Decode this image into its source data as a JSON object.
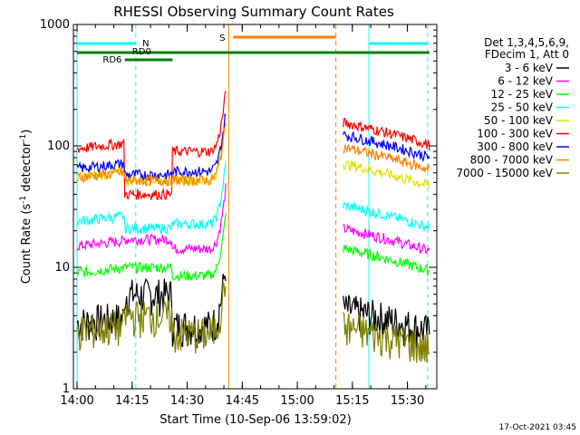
{
  "chart_data": {
    "type": "line",
    "title": "RHESSI Observing Summary Count Rates",
    "xlabel": "Start Time (10-Sep-06 13:59:02)",
    "ylabel_main": "Count Rate (s",
    "ylabel_sup1": "-1",
    "ylabel_mid": " detector",
    "ylabel_sup2": "-1",
    "ylabel_end": ")",
    "ylog": true,
    "ylim": [
      1,
      1000
    ],
    "xlim_min": [
      0,
      99
    ],
    "x_ticks": [
      {
        "t": 1,
        "label": "14:00"
      },
      {
        "t": 16,
        "label": "14:15"
      },
      {
        "t": 31,
        "label": "14:30"
      },
      {
        "t": 46,
        "label": "14:45"
      },
      {
        "t": 61,
        "label": "15:00"
      },
      {
        "t": 76,
        "label": "15:15"
      },
      {
        "t": 91,
        "label": "15:30"
      }
    ],
    "y_ticks": [
      {
        "v": 1,
        "label": "1"
      },
      {
        "v": 10,
        "label": "10"
      },
      {
        "v": 100,
        "label": "100"
      },
      {
        "v": 1000,
        "label": "1000"
      }
    ],
    "legend_header": [
      "Det 1,3,4,5,6,9,",
      "FDecim 1, Att 0"
    ],
    "series": [
      {
        "name": "3 - 6 keV",
        "color": "#000000",
        "pre": 3.5,
        "bump": 6.0,
        "post": 3.5
      },
      {
        "name": "6 - 12 keV",
        "color": "#ff00ff",
        "pre": 15,
        "bump": 17,
        "post": 16
      },
      {
        "name": "12 - 25 keV",
        "color": "#00ff00",
        "pre": 9,
        "bump": 10,
        "post": 11
      },
      {
        "name": "25 - 50 keV",
        "color": "#00ffff",
        "pre": 24,
        "bump": 21,
        "post": 25
      },
      {
        "name": "50 - 100 keV",
        "color": "#e0e000",
        "pre": 55,
        "bump": 52,
        "post": 55
      },
      {
        "name": "100 - 300 keV",
        "color": "#ff0000",
        "pre": 95,
        "bump": 40,
        "post": 120
      },
      {
        "name": "300 - 800 keV",
        "color": "#0000ff",
        "pre": 65,
        "bump": 58,
        "post": 95
      },
      {
        "name": "800 - 7000 keV",
        "color": "#ff8000",
        "pre": 55,
        "bump": 52,
        "post": 75
      },
      {
        "name": "7000 - 15000 keV",
        "color": "#808000",
        "pre": 3,
        "bump": 4,
        "post": 2.5
      }
    ],
    "annotations": {
      "saa_label": "N",
      "flare_label": "S",
      "rd0_label": "RD0",
      "rd6_label": "RD6"
    },
    "footer_date": "17-Oct-2021 03:45"
  }
}
